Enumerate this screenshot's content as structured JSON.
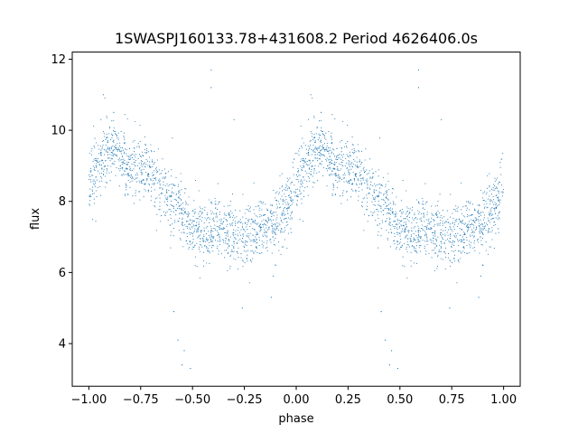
{
  "chart_data": {
    "type": "scatter",
    "title": "1SWASPJ160133.78+431608.2 Period 4626406.0s",
    "xlabel": "phase",
    "ylabel": "flux",
    "xlim": [
      -1.08,
      1.08
    ],
    "ylim": [
      2.8,
      12.2
    ],
    "xticks": [
      -1.0,
      -0.75,
      -0.5,
      -0.25,
      0.0,
      0.25,
      0.5,
      0.75,
      1.0
    ],
    "xtick_labels": [
      "−1.00",
      "−0.75",
      "−0.50",
      "−0.25",
      "0.00",
      "0.25",
      "0.50",
      "0.75",
      "1.00"
    ],
    "yticks": [
      4,
      6,
      8,
      10,
      12
    ],
    "ytick_labels": [
      "4",
      "6",
      "8",
      "10",
      "12"
    ],
    "grid": false,
    "marker_color": "#1f77b4",
    "series": [
      {
        "name": "",
        "repeat_period": 1.0,
        "note_points": "phase-folded light curve; points in phase [-1,0] repeated at [0,1]",
        "profile": [
          [
            0.0,
            8.3
          ],
          [
            0.03,
            8.8
          ],
          [
            0.06,
            9.2
          ],
          [
            0.1,
            9.4
          ],
          [
            0.13,
            9.5
          ],
          [
            0.16,
            9.2
          ],
          [
            0.2,
            9.0
          ],
          [
            0.25,
            8.9
          ],
          [
            0.3,
            8.8
          ],
          [
            0.35,
            8.4
          ],
          [
            0.4,
            8.0
          ],
          [
            0.45,
            7.6
          ],
          [
            0.5,
            7.4
          ],
          [
            0.55,
            7.0
          ],
          [
            0.6,
            7.3
          ],
          [
            0.65,
            7.2
          ],
          [
            0.7,
            7.1
          ],
          [
            0.75,
            7.0
          ],
          [
            0.8,
            7.2
          ],
          [
            0.85,
            7.3
          ],
          [
            0.9,
            7.4
          ],
          [
            0.95,
            7.8
          ],
          [
            1.0,
            8.3
          ]
        ],
        "scatter_sigma": 0.55,
        "outliers": [
          [
            -0.41,
            11.7
          ],
          [
            -0.41,
            11.2
          ],
          [
            -0.3,
            10.3
          ],
          [
            -0.93,
            11.0
          ],
          [
            -0.88,
            10.5
          ],
          [
            -0.57,
            4.1
          ],
          [
            -0.55,
            3.4
          ],
          [
            -0.54,
            3.8
          ],
          [
            -0.51,
            3.3
          ],
          [
            -0.12,
            5.3
          ],
          [
            -0.11,
            5.9
          ],
          [
            -0.1,
            6.2
          ],
          [
            -0.26,
            5.0
          ],
          [
            -0.59,
            4.9
          ],
          [
            -0.65,
            7.6
          ],
          [
            0.59,
            11.7
          ],
          [
            0.59,
            11.2
          ],
          [
            0.7,
            10.3
          ],
          [
            0.07,
            11.0
          ],
          [
            0.12,
            10.5
          ],
          [
            0.43,
            4.1
          ],
          [
            0.45,
            3.4
          ],
          [
            0.46,
            3.8
          ],
          [
            0.49,
            3.3
          ],
          [
            0.88,
            5.3
          ],
          [
            0.89,
            5.9
          ],
          [
            0.9,
            6.2
          ],
          [
            0.74,
            5.0
          ],
          [
            0.41,
            4.9
          ],
          [
            0.35,
            7.6
          ]
        ]
      }
    ]
  }
}
